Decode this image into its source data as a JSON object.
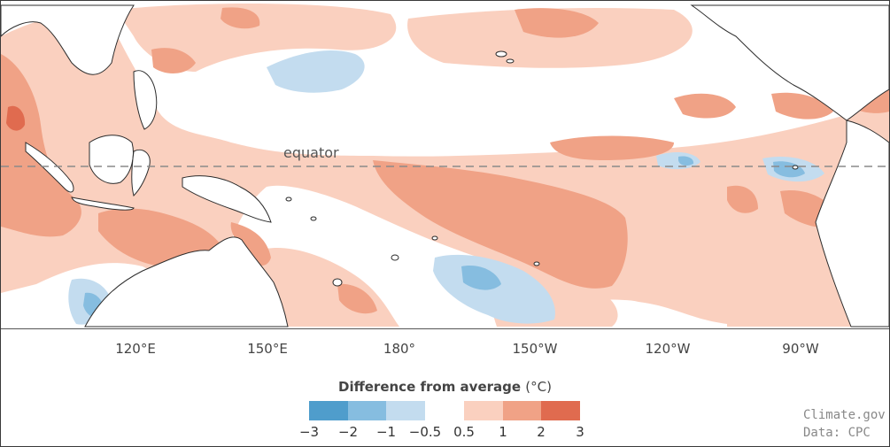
{
  "map": {
    "equator_label": "equator",
    "longitude_labels": [
      "120°E",
      "150°E",
      "180°",
      "150°W",
      "120°W",
      "90°W"
    ]
  },
  "legend": {
    "title": "Difference from average",
    "unit": "(°C)",
    "ticks": [
      "−3",
      "−2",
      "−1",
      "−0.5",
      "0.5",
      "1",
      "2",
      "3"
    ],
    "colors": [
      "#4f9dcc",
      "#86bde0",
      "#c3dcef",
      "#ffffff",
      "#fad0bf",
      "#f0a286",
      "#e06b4f"
    ]
  },
  "credit": {
    "line1": "Climate.gov",
    "line2": "Data: CPC"
  }
}
